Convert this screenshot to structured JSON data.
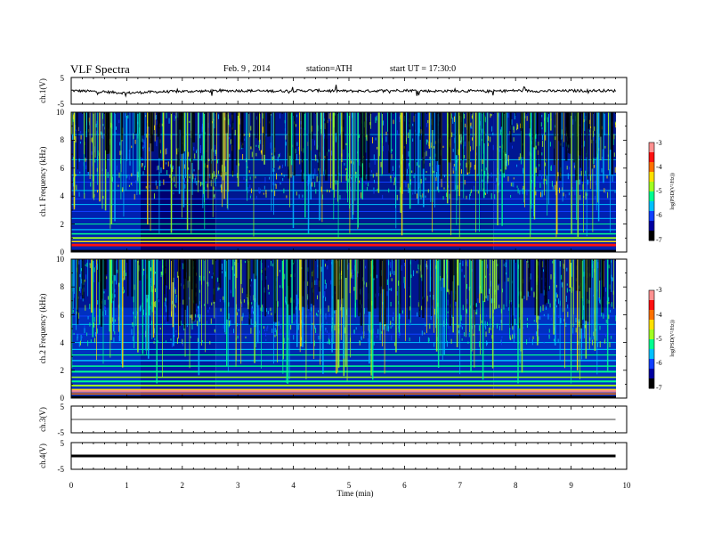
{
  "header": {
    "title": "VLF Spectra",
    "date": "Feb. 9 , 2014",
    "station": "station=ATH",
    "start": "start UT = 17:30:0"
  },
  "colors": {
    "ramp": [
      "#000000",
      "#0000a0",
      "#1040ff",
      "#00c0ff",
      "#00ff90",
      "#a0ff20",
      "#ffe000",
      "#ff7000",
      "#ff1010",
      "#ff9090"
    ]
  },
  "chart_data": [
    {
      "type": "line",
      "panel": "ch1",
      "ylabel": "ch.1(V)",
      "ylim": [
        -5,
        5
      ],
      "yticks": [
        "-5",
        "5"
      ],
      "x": [
        0,
        0.5,
        1,
        1.5,
        2,
        2.5,
        3,
        3.5,
        4,
        4.5,
        5,
        5.5,
        6,
        6.5,
        7,
        7.5,
        8,
        8.5,
        9,
        9.5,
        9.8
      ],
      "y": [
        0.1,
        -0.3,
        -0.8,
        -0.4,
        -0.2,
        -0.1,
        0.1,
        -0.1,
        0,
        0.1,
        -0.1,
        0,
        0.2,
        -0.1,
        0,
        -0.2,
        0.1,
        -0.1,
        0,
        0.1,
        0
      ]
    },
    {
      "type": "heatmap",
      "panel": "ch1-spectrogram",
      "ylabel": "ch.1 Frequency (kHz)",
      "ylim": [
        0,
        10
      ],
      "yticks": [
        "0",
        "2",
        "4",
        "6",
        "8",
        "10"
      ],
      "colorbar": {
        "label": "log(PSD(V²/Hz))",
        "range": [
          -7,
          -3
        ],
        "ticks": [
          "-3",
          "-4",
          "-5",
          "-6",
          "-7"
        ]
      },
      "segments_min": [
        1.25,
        2.6,
        7.6
      ]
    },
    {
      "type": "heatmap",
      "panel": "ch2-spectrogram",
      "ylabel": "ch.2 Frequency (kHz)",
      "ylim": [
        0,
        10
      ],
      "yticks": [
        "0",
        "2",
        "4",
        "6",
        "8",
        "10"
      ],
      "colorbar": {
        "label": "log(PSD(V²/Hz))",
        "range": [
          -7,
          -3
        ],
        "ticks": [
          "-3",
          "-4",
          "-5",
          "-6",
          "-7"
        ]
      },
      "segments_min": [
        1.25,
        2.6,
        7.6
      ]
    },
    {
      "type": "line",
      "panel": "ch3",
      "ylabel": "ch.3(V)",
      "ylim": [
        -5,
        5
      ],
      "yticks": [
        "-5",
        "5"
      ],
      "x": [
        0,
        9.8
      ],
      "y": [
        0,
        0
      ]
    },
    {
      "type": "line",
      "panel": "ch4",
      "ylabel": "ch.4(V)",
      "ylim": [
        -5,
        5
      ],
      "yticks": [
        "-5",
        "5"
      ],
      "x": [
        0,
        9.8
      ],
      "y": [
        0,
        0
      ]
    }
  ],
  "xaxis": {
    "label": "Time (min)",
    "xlim": [
      0,
      10
    ],
    "ticks": [
      "0",
      "1",
      "2",
      "3",
      "4",
      "5",
      "6",
      "7",
      "8",
      "9",
      "10"
    ]
  }
}
